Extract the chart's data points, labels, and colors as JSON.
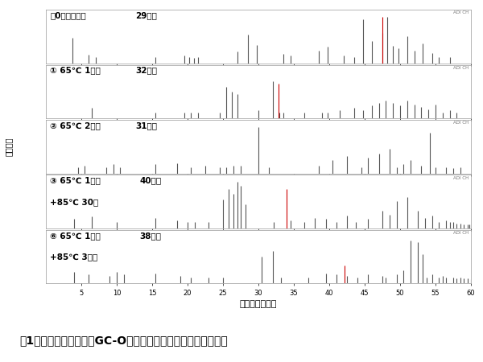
{
  "title": "図1　火入れ条件によるGC-Oでの検出成分数と官能強度の違い",
  "ylabel": "官能強度",
  "xlabel": "分析時間（分）",
  "xmin": 0,
  "xmax": 60,
  "xticks": [
    5,
    10,
    15,
    20,
    25,
    30,
    35,
    40,
    45,
    50,
    55,
    60
  ],
  "panels": [
    {
      "label_line1": "␃0火入れなし",
      "label_line2": "",
      "count": "29成分",
      "peaks_gray": [
        3.8,
        6.0,
        7.0,
        15.5,
        19.5,
        20.2,
        20.9,
        21.5,
        27.0,
        28.5,
        29.8,
        33.5,
        34.5,
        38.5,
        39.8,
        42.0,
        43.5,
        44.8,
        46.0,
        47.5,
        48.2,
        49.0,
        49.8,
        51.0,
        52.0,
        53.2,
        54.5,
        55.5,
        57.0
      ],
      "heights_gray": [
        0.55,
        0.18,
        0.13,
        0.13,
        0.17,
        0.13,
        0.11,
        0.13,
        0.25,
        0.62,
        0.4,
        0.2,
        0.17,
        0.28,
        0.35,
        0.17,
        0.13,
        0.95,
        0.48,
        0.65,
        1.0,
        0.38,
        0.33,
        0.58,
        0.28,
        0.42,
        0.22,
        0.13,
        0.13
      ],
      "peaks_red": [
        47.5
      ],
      "heights_red": [
        1.0
      ]
    },
    {
      "label_line1": "① 65℃ 1時間",
      "label_line2": "",
      "count": "32成分",
      "peaks_gray": [
        6.5,
        15.5,
        19.5,
        20.5,
        21.5,
        24.5,
        25.5,
        26.2,
        27.0,
        30.0,
        32.0,
        33.0,
        33.5,
        36.5,
        39.0,
        39.8,
        41.5,
        43.5,
        44.8,
        46.0,
        47.0,
        48.0,
        49.0,
        50.0,
        51.0,
        52.0,
        53.0,
        54.0,
        55.0,
        56.0,
        57.0,
        58.0
      ],
      "heights_gray": [
        0.22,
        0.13,
        0.13,
        0.13,
        0.13,
        0.13,
        0.68,
        0.58,
        0.52,
        0.18,
        0.8,
        0.13,
        0.13,
        0.13,
        0.13,
        0.13,
        0.17,
        0.22,
        0.17,
        0.28,
        0.33,
        0.38,
        0.33,
        0.28,
        0.38,
        0.3,
        0.24,
        0.2,
        0.3,
        0.13,
        0.17,
        0.13
      ],
      "peaks_red": [
        32.8
      ],
      "heights_red": [
        0.75
      ]
    },
    {
      "label_line1": "② 65℃ 2時間",
      "label_line2": "",
      "count": "31成分",
      "peaks_gray": [
        4.5,
        5.5,
        8.5,
        9.5,
        10.5,
        15.5,
        18.5,
        20.5,
        22.5,
        24.5,
        25.5,
        26.5,
        27.5,
        30.0,
        31.5,
        38.5,
        40.5,
        42.5,
        44.5,
        45.5,
        47.0,
        48.5,
        49.5,
        50.5,
        51.5,
        53.0,
        54.2,
        55.0,
        56.5,
        57.5,
        58.5
      ],
      "heights_gray": [
        0.13,
        0.17,
        0.13,
        0.2,
        0.13,
        0.2,
        0.22,
        0.13,
        0.17,
        0.13,
        0.13,
        0.17,
        0.17,
        1.0,
        0.13,
        0.17,
        0.28,
        0.38,
        0.13,
        0.33,
        0.42,
        0.52,
        0.13,
        0.2,
        0.28,
        0.17,
        0.88,
        0.13,
        0.13,
        0.11,
        0.13
      ],
      "peaks_red": [],
      "heights_red": []
    },
    {
      "label_line1": "③ 65℃ 1時間",
      "label_line2": "+85℃ 30分",
      "count": "40成分",
      "peaks_gray": [
        4.0,
        6.5,
        10.0,
        15.5,
        18.5,
        20.0,
        21.0,
        23.0,
        25.0,
        25.8,
        26.5,
        27.0,
        27.5,
        28.2,
        32.2,
        34.5,
        36.5,
        38.0,
        39.5,
        41.0,
        42.5,
        43.8,
        45.5,
        47.5,
        48.5,
        49.5,
        51.0,
        52.5,
        53.5,
        54.5,
        55.5,
        56.5,
        57.0,
        57.5,
        58.0,
        58.5,
        59.0,
        59.5,
        59.8,
        60.0
      ],
      "heights_gray": [
        0.2,
        0.25,
        0.13,
        0.22,
        0.17,
        0.13,
        0.13,
        0.13,
        0.62,
        0.85,
        0.75,
        1.0,
        0.92,
        0.52,
        0.13,
        0.17,
        0.13,
        0.22,
        0.2,
        0.13,
        0.28,
        0.13,
        0.2,
        0.38,
        0.3,
        0.58,
        0.68,
        0.38,
        0.22,
        0.28,
        0.13,
        0.17,
        0.13,
        0.13,
        0.11,
        0.11,
        0.09,
        0.09,
        0.09,
        0.09
      ],
      "peaks_red": [
        34.0
      ],
      "heights_red": [
        0.85
      ]
    },
    {
      "label_line1": "⑥ 65℃ 1時間",
      "label_line2": "+85℃ 3時間",
      "count": "38成分",
      "peaks_gray": [
        4.0,
        6.0,
        9.0,
        10.0,
        11.0,
        15.5,
        19.0,
        20.5,
        23.0,
        25.0,
        30.5,
        32.0,
        33.2,
        37.0,
        39.5,
        41.0,
        42.5,
        44.0,
        45.5,
        47.5,
        48.0,
        49.5,
        50.5,
        51.5,
        52.5,
        53.2,
        53.8,
        54.5,
        55.5,
        56.0,
        56.5,
        57.5,
        58.0,
        58.5,
        59.0,
        59.5,
        60.0,
        60.5
      ],
      "heights_gray": [
        0.25,
        0.2,
        0.17,
        0.25,
        0.2,
        0.22,
        0.17,
        0.13,
        0.13,
        0.13,
        0.58,
        0.7,
        0.13,
        0.13,
        0.22,
        0.2,
        0.17,
        0.13,
        0.2,
        0.17,
        0.13,
        0.2,
        0.28,
        0.92,
        0.88,
        0.62,
        0.13,
        0.2,
        0.13,
        0.17,
        0.13,
        0.13,
        0.11,
        0.13,
        0.11,
        0.11,
        0.09,
        0.09
      ],
      "peaks_red": [
        42.2
      ],
      "heights_red": [
        0.38
      ]
    }
  ],
  "bg_color": "#ffffff",
  "panel_bg": "#ffffff",
  "border_color": "#999999",
  "gray_color": "#555555",
  "red_color": "#cc0000",
  "label_fontsize": 7.5,
  "count_fontsize": 7.5,
  "axis_fontsize": 6,
  "title_fontsize": 10,
  "ylabel_fontsize": 7
}
